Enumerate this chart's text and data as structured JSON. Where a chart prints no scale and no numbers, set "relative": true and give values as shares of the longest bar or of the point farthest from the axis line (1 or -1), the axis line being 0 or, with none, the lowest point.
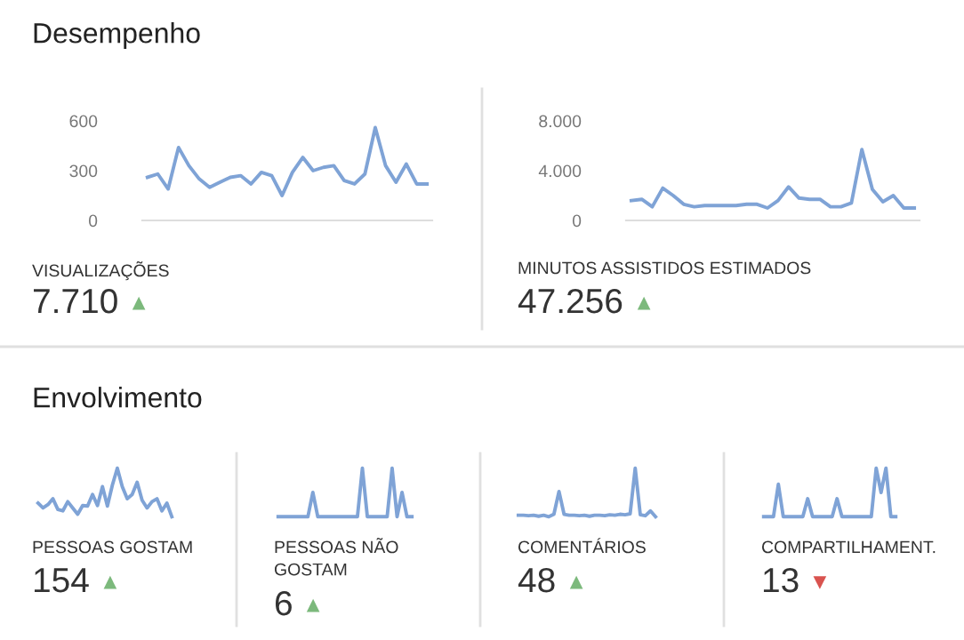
{
  "chart_data": [
    {
      "type": "line",
      "title": "Desempenho",
      "xlabel": "VISUALIZAÇÕES",
      "annotations": [
        "7.710",
        "▲"
      ],
      "categories": [
        null,
        null,
        null,
        null,
        null,
        null,
        null,
        null,
        null,
        null,
        null,
        null,
        null,
        null,
        null,
        null,
        null,
        null,
        null,
        null,
        null,
        null,
        null,
        null,
        null,
        null,
        null,
        null
      ],
      "series": [
        {
          "color": "#7fa3d6",
          "values": [
            260,
            280,
            190,
            440,
            330,
            250,
            200,
            230,
            260,
            270,
            220,
            290,
            270,
            150,
            290,
            380,
            300,
            320,
            330,
            240,
            220,
            280,
            560,
            330,
            230,
            340,
            220,
            220
          ]
        }
      ],
      "ylim": [
        0,
        600
      ],
      "yticks": [
        0,
        300,
        600
      ],
      "tick_labels": "y",
      "grid": false,
      "legend": false
    },
    {
      "type": "line",
      "xlabel": "MINUTOS ASSISTIDOS ESTIMADOS",
      "annotations": [
        "47.256",
        "▲"
      ],
      "categories": [
        null,
        null,
        null,
        null,
        null,
        null,
        null,
        null,
        null,
        null,
        null,
        null,
        null,
        null,
        null,
        null,
        null,
        null,
        null,
        null,
        null,
        null,
        null,
        null,
        null,
        null,
        null,
        null
      ],
      "series": [
        {
          "color": "#7fa3d6",
          "values": [
            1600,
            1700,
            1100,
            2600,
            2000,
            1300,
            1100,
            1200,
            1200,
            1200,
            1200,
            1300,
            1300,
            1000,
            1600,
            2700,
            1800,
            1700,
            1700,
            1100,
            1100,
            1400,
            5700,
            2500,
            1500,
            2000,
            1000,
            1000
          ]
        }
      ],
      "ylim": [
        0,
        8000
      ],
      "yticks": [
        0,
        {
          "value": 4000,
          "label": "4.000"
        },
        {
          "value": 8000,
          "label": "8.000"
        }
      ],
      "tick_labels": "y",
      "grid": false,
      "legend": false
    },
    {
      "type": "line",
      "title": "Envolvimento",
      "xlabel": "PESSOAS GOSTAM",
      "annotations": [
        "154",
        "▲"
      ],
      "relative": true,
      "categories": [
        null,
        null,
        null,
        null,
        null,
        null,
        null,
        null,
        null,
        null,
        null,
        null,
        null,
        null,
        null,
        null,
        null,
        null,
        null,
        null,
        null,
        null,
        null,
        null,
        null,
        null,
        null,
        null
      ],
      "series": [
        {
          "color": "#7fa3d6",
          "values": [
            0.28,
            0.18,
            0.25,
            0.37,
            0.15,
            0.12,
            0.31,
            0.18,
            0.05,
            0.23,
            0.22,
            0.46,
            0.23,
            0.62,
            0.22,
            0.65,
            1,
            0.62,
            0.37,
            0.46,
            0.71,
            0.34,
            0.18,
            0.31,
            0.37,
            0.12,
            0.28,
            0
          ]
        }
      ],
      "legend": false
    },
    {
      "type": "line",
      "xlabel": "PESSOAS NÃO\nGOSTAM",
      "annotations": [
        "6",
        "▲"
      ],
      "relative": true,
      "categories": [
        null,
        null,
        null,
        null,
        null,
        null,
        null,
        null,
        null,
        null,
        null,
        null,
        null,
        null,
        null,
        null,
        null,
        null,
        null,
        null,
        null,
        null,
        null,
        null,
        null,
        null,
        null,
        null
      ],
      "series": [
        {
          "color": "#7fa3d6",
          "values": [
            0,
            0,
            0,
            0,
            0,
            0,
            0,
            0.5,
            0,
            0,
            0,
            0,
            0,
            0,
            0,
            0,
            0,
            1,
            0,
            0,
            0,
            0,
            0,
            1,
            0,
            0.5,
            0,
            0
          ]
        }
      ],
      "legend": false
    },
    {
      "type": "line",
      "xlabel": "COMENTÁRIOS",
      "annotations": [
        "48",
        "▲"
      ],
      "relative": true,
      "categories": [
        null,
        null,
        null,
        null,
        null,
        null,
        null,
        null,
        null,
        null,
        null,
        null,
        null,
        null,
        null,
        null,
        null,
        null,
        null,
        null,
        null,
        null,
        null,
        null,
        null,
        null,
        null,
        null
      ],
      "series": [
        {
          "color": "#7fa3d6",
          "values": [
            0.03,
            0.03,
            0.02,
            0.03,
            0.01,
            0.03,
            0,
            0.05,
            0.52,
            0.05,
            0.03,
            0.03,
            0.02,
            0.03,
            0.01,
            0.03,
            0.03,
            0.02,
            0.04,
            0.03,
            0.05,
            0.04,
            0.06,
            1,
            0.04,
            0.02,
            0.12,
            0
          ]
        }
      ],
      "legend": false
    },
    {
      "type": "line",
      "xlabel": "COMPARTILHAMENT.",
      "annotations": [
        "13",
        "▼"
      ],
      "relative": true,
      "categories": [
        null,
        null,
        null,
        null,
        null,
        null,
        null,
        null,
        null,
        null,
        null,
        null,
        null,
        null,
        null,
        null,
        null,
        null,
        null,
        null,
        null,
        null,
        null,
        null,
        null,
        null,
        null,
        null
      ],
      "series": [
        {
          "color": "#7fa3d6",
          "values": [
            0,
            0,
            0,
            0.67,
            0,
            0,
            0,
            0,
            0,
            0.37,
            0,
            0,
            0,
            0,
            0,
            0.37,
            0,
            0,
            0,
            0,
            0,
            0,
            0,
            1,
            0.5,
            1,
            0,
            0
          ]
        }
      ],
      "legend": false
    }
  ]
}
